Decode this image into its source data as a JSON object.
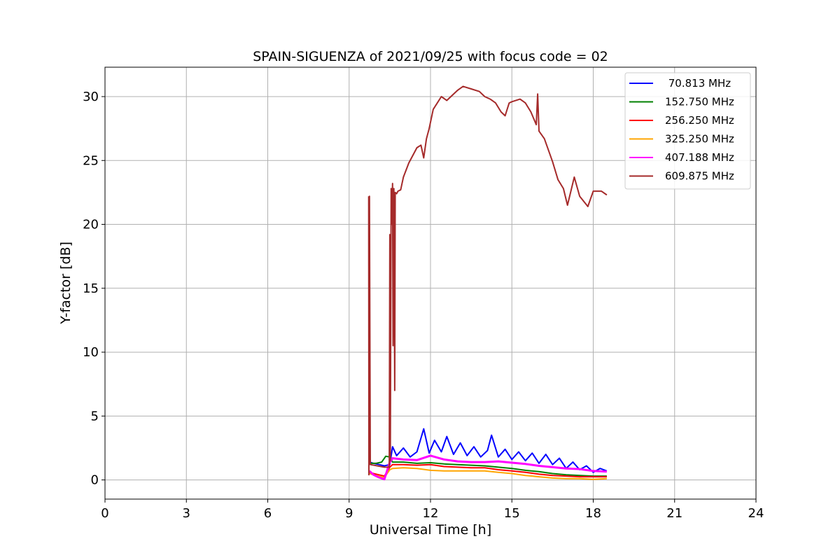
{
  "chart_data": {
    "type": "line",
    "title": "SPAIN-SIGUENZA of 2021/09/25 with focus code = 02",
    "xlabel": "Universal Time [h]",
    "ylabel": "Y-factor [dB]",
    "xlim": [
      0,
      24
    ],
    "ylim": [
      -1.5,
      32.3
    ],
    "xticks": [
      0,
      3,
      6,
      9,
      12,
      15,
      18,
      21,
      24
    ],
    "yticks": [
      0,
      5,
      10,
      15,
      20,
      25,
      30
    ],
    "grid": true,
    "legend_position": "top-right",
    "series": [
      {
        "name": " 70.813 MHz",
        "color": "#0000ff",
        "x": [
          9.75,
          9.9,
          10.1,
          10.3,
          10.5,
          10.6,
          10.75,
          11.0,
          11.25,
          11.5,
          11.75,
          11.95,
          12.15,
          12.4,
          12.6,
          12.85,
          13.1,
          13.35,
          13.6,
          13.85,
          14.1,
          14.25,
          14.5,
          14.75,
          15.0,
          15.25,
          15.5,
          15.75,
          16.0,
          16.25,
          16.5,
          16.75,
          17.0,
          17.25,
          17.5,
          17.75,
          18.0,
          18.25,
          18.5
        ],
        "y": [
          1.4,
          1.3,
          1.2,
          1.1,
          1.2,
          2.6,
          1.9,
          2.5,
          1.8,
          2.2,
          4.0,
          2.1,
          3.1,
          2.2,
          3.4,
          2.0,
          2.9,
          1.9,
          2.6,
          1.8,
          2.3,
          3.5,
          1.8,
          2.4,
          1.6,
          2.2,
          1.5,
          2.1,
          1.3,
          2.0,
          1.2,
          1.7,
          0.9,
          1.4,
          0.8,
          1.1,
          0.6,
          0.9,
          0.7
        ]
      },
      {
        "name": "152.750 MHz",
        "color": "#008000",
        "x": [
          9.75,
          10.0,
          10.2,
          10.35,
          10.5,
          10.6,
          11.0,
          11.5,
          12.0,
          12.5,
          13.0,
          13.5,
          14.0,
          14.5,
          15.0,
          15.5,
          16.0,
          16.5,
          17.0,
          17.5,
          18.0,
          18.5
        ],
        "y": [
          1.3,
          1.3,
          1.4,
          1.85,
          1.8,
          1.4,
          1.4,
          1.3,
          1.35,
          1.25,
          1.2,
          1.15,
          1.1,
          1.0,
          0.9,
          0.75,
          0.65,
          0.5,
          0.4,
          0.35,
          0.3,
          0.3
        ]
      },
      {
        "name": "256.250 MHz",
        "color": "#ff0000",
        "x": [
          9.75,
          9.9,
          10.1,
          10.3,
          10.5,
          10.6,
          11.0,
          11.5,
          12.0,
          12.5,
          13.0,
          13.5,
          14.0,
          14.5,
          15.0,
          15.5,
          16.0,
          16.5,
          17.0,
          17.5,
          18.0,
          18.5
        ],
        "y": [
          0.6,
          0.5,
          0.4,
          0.3,
          1.0,
          1.2,
          1.2,
          1.15,
          1.2,
          1.05,
          1.0,
          0.95,
          0.95,
          0.8,
          0.7,
          0.6,
          0.45,
          0.35,
          0.3,
          0.25,
          0.25,
          0.25
        ]
      },
      {
        "name": "325.250 MHz",
        "color": "#ffa500",
        "x": [
          9.75,
          9.9,
          10.1,
          10.3,
          10.5,
          10.6,
          11.0,
          11.5,
          12.0,
          12.5,
          13.0,
          13.5,
          14.0,
          14.5,
          15.0,
          15.5,
          16.0,
          16.5,
          17.0,
          17.5,
          18.0,
          18.5
        ],
        "y": [
          0.5,
          0.4,
          0.3,
          0.2,
          0.8,
          0.9,
          0.95,
          0.9,
          0.75,
          0.7,
          0.7,
          0.7,
          0.7,
          0.6,
          0.5,
          0.35,
          0.25,
          0.15,
          0.1,
          0.1,
          0.05,
          0.1
        ]
      },
      {
        "name": "407.188 MHz",
        "color": "#ff00ff",
        "x": [
          9.75,
          9.9,
          10.1,
          10.3,
          10.5,
          10.6,
          11.0,
          11.5,
          12.0,
          12.5,
          13.0,
          13.5,
          14.0,
          14.5,
          15.0,
          15.5,
          16.0,
          16.5,
          17.0,
          17.5,
          18.0,
          18.5
        ],
        "y": [
          0.7,
          0.4,
          0.2,
          0.05,
          1.4,
          1.7,
          1.6,
          1.55,
          1.9,
          1.6,
          1.45,
          1.4,
          1.4,
          1.45,
          1.35,
          1.25,
          1.1,
          1.0,
          0.9,
          0.85,
          0.7,
          0.65
        ]
      },
      {
        "name": "609.875 MHz",
        "color": "#a52a2a",
        "x": [
          9.72,
          9.73,
          9.74,
          9.75,
          9.78,
          10.3,
          10.48,
          10.5,
          10.52,
          10.55,
          10.57,
          10.6,
          10.62,
          10.65,
          10.68,
          10.7,
          10.75,
          10.8,
          10.9,
          11.0,
          11.2,
          11.5,
          11.65,
          11.75,
          11.85,
          11.95,
          12.1,
          12.4,
          12.6,
          12.75,
          13.0,
          13.2,
          13.5,
          13.8,
          14.0,
          14.2,
          14.4,
          14.6,
          14.75,
          14.9,
          15.0,
          15.3,
          15.5,
          15.7,
          15.9,
          15.95,
          16.0,
          16.2,
          16.5,
          16.7,
          16.9,
          17.05,
          17.3,
          17.5,
          17.8,
          18.0,
          18.3,
          18.5
        ],
        "y": [
          22.2,
          0.4,
          10.0,
          22.2,
          1.2,
          1.0,
          1.0,
          19.2,
          1.5,
          22.8,
          20.0,
          23.2,
          10.5,
          22.8,
          7.0,
          22.5,
          22.4,
          22.6,
          22.7,
          23.7,
          24.8,
          26.0,
          26.2,
          25.2,
          26.7,
          27.5,
          29.0,
          30.0,
          29.7,
          30.0,
          30.5,
          30.8,
          30.6,
          30.4,
          30.0,
          29.8,
          29.5,
          28.8,
          28.5,
          29.5,
          29.6,
          29.8,
          29.5,
          28.8,
          27.8,
          30.2,
          27.3,
          26.7,
          24.9,
          23.5,
          22.8,
          21.5,
          23.7,
          22.2,
          21.4,
          22.6,
          22.6,
          22.3
        ]
      }
    ]
  }
}
